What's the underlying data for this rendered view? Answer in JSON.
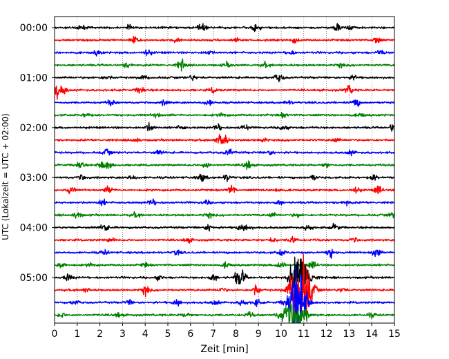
{
  "chart_data": {
    "type": "line",
    "title": "",
    "xlabel": "Zeit  [min]",
    "ylabel": "UTC (Lokalzeit = UTC + 02:00)",
    "xlim": [
      0,
      15
    ],
    "x_ticks": [
      "0",
      "1",
      "2",
      "3",
      "4",
      "5",
      "6",
      "7",
      "8",
      "9",
      "10",
      "11",
      "12",
      "13",
      "14",
      "15"
    ],
    "y_ticks": [
      "00:00",
      "01:00",
      "02:00",
      "03:00",
      "04:00",
      "05:00"
    ],
    "grid": "vertical dotted",
    "row_minutes": 15,
    "row_colors": [
      "#000000",
      "#ff0000",
      "#0000ff",
      "#008000"
    ],
    "series": [
      {
        "start": "00:00",
        "events": [
          [
            1.2,
            0.3
          ],
          [
            3.3,
            0.3
          ],
          [
            6.5,
            0.5
          ],
          [
            8.9,
            0.5
          ],
          [
            12.5,
            0.6
          ],
          [
            13.1,
            0.3
          ]
        ]
      },
      {
        "start": "00:15",
        "events": [
          [
            3.5,
            0.6
          ],
          [
            5.4,
            0.3
          ],
          [
            8.0,
            0.3
          ],
          [
            10.6,
            0.3
          ],
          [
            14.2,
            0.5
          ]
        ]
      },
      {
        "start": "00:30",
        "events": [
          [
            1.9,
            0.3
          ],
          [
            4.1,
            0.5
          ],
          [
            6.8,
            0.3
          ],
          [
            10.4,
            0.3
          ],
          [
            14.4,
            0.3
          ]
        ]
      },
      {
        "start": "00:45",
        "events": [
          [
            3.2,
            0.3
          ],
          [
            5.6,
            0.8
          ],
          [
            7.6,
            0.3
          ],
          [
            9.3,
            0.3
          ],
          [
            12.6,
            0.3
          ]
        ]
      },
      {
        "start": "01:00",
        "events": [
          [
            2.3,
            0.3
          ],
          [
            3.9,
            0.3
          ],
          [
            6.1,
            0.3
          ],
          [
            9.9,
            0.6
          ],
          [
            13.2,
            0.3
          ]
        ]
      },
      {
        "start": "01:15",
        "events": [
          [
            0.1,
            1.0
          ],
          [
            0.4,
            0.5
          ],
          [
            3.8,
            0.6
          ],
          [
            7.0,
            0.3
          ],
          [
            13.0,
            0.6
          ]
        ]
      },
      {
        "start": "01:30",
        "events": [
          [
            2.5,
            0.4
          ],
          [
            4.9,
            0.4
          ],
          [
            6.8,
            0.4
          ],
          [
            10.3,
            0.3
          ],
          [
            13.3,
            0.6
          ]
        ]
      },
      {
        "start": "01:45",
        "events": [
          [
            1.4,
            0.3
          ],
          [
            4.5,
            0.3
          ],
          [
            7.4,
            0.3
          ],
          [
            10.1,
            0.3
          ],
          [
            13.5,
            0.3
          ]
        ]
      },
      {
        "start": "02:00",
        "events": [
          [
            4.2,
            0.6
          ],
          [
            5.6,
            0.3
          ],
          [
            7.2,
            0.5
          ],
          [
            8.4,
            0.4
          ],
          [
            10.1,
            0.4
          ],
          [
            15.0,
            0.8
          ]
        ]
      },
      {
        "start": "02:15",
        "events": [
          [
            3.6,
            0.3
          ],
          [
            7.3,
            0.8
          ],
          [
            7.5,
            0.6
          ],
          [
            9.2,
            0.3
          ],
          [
            12.4,
            0.3
          ]
        ]
      },
      {
        "start": "02:30",
        "events": [
          [
            2.3,
            0.4
          ],
          [
            4.6,
            0.3
          ],
          [
            7.7,
            0.5
          ],
          [
            9.5,
            0.3
          ],
          [
            13.1,
            0.3
          ]
        ]
      },
      {
        "start": "02:45",
        "events": [
          [
            1.1,
            0.6
          ],
          [
            2.1,
            0.6
          ],
          [
            2.4,
            0.5
          ],
          [
            6.7,
            0.4
          ],
          [
            8.5,
            0.7
          ],
          [
            12.0,
            0.3
          ]
        ]
      },
      {
        "start": "03:00",
        "events": [
          [
            1.2,
            0.3
          ],
          [
            3.4,
            0.3
          ],
          [
            6.5,
            0.6
          ],
          [
            7.6,
            0.5
          ],
          [
            11.4,
            0.4
          ],
          [
            14.1,
            0.4
          ]
        ]
      },
      {
        "start": "03:15",
        "events": [
          [
            0.7,
            0.5
          ],
          [
            2.4,
            0.5
          ],
          [
            7.8,
            0.6
          ],
          [
            9.8,
            0.3
          ],
          [
            13.3,
            0.5
          ],
          [
            14.3,
            0.6
          ]
        ]
      },
      {
        "start": "03:30",
        "events": [
          [
            2.1,
            0.4
          ],
          [
            4.3,
            0.5
          ],
          [
            6.7,
            0.3
          ],
          [
            9.9,
            0.3
          ],
          [
            12.9,
            0.3
          ]
        ]
      },
      {
        "start": "03:45",
        "events": [
          [
            1.0,
            0.5
          ],
          [
            3.6,
            0.3
          ],
          [
            6.8,
            0.4
          ],
          [
            9.6,
            0.3
          ],
          [
            10.7,
            0.3
          ],
          [
            14.9,
            0.3
          ]
        ]
      },
      {
        "start": "04:00",
        "events": [
          [
            2.2,
            0.5
          ],
          [
            6.8,
            0.5
          ],
          [
            8.2,
            0.4
          ],
          [
            8.5,
            0.4
          ],
          [
            11.2,
            0.4
          ],
          [
            12.4,
            0.5
          ]
        ]
      },
      {
        "start": "04:15",
        "events": [
          [
            2.5,
            0.3
          ],
          [
            5.9,
            0.3
          ],
          [
            9.6,
            0.4
          ],
          [
            10.5,
            0.5
          ],
          [
            13.2,
            0.3
          ]
        ]
      },
      {
        "start": "04:30",
        "events": [
          [
            2.2,
            0.3
          ],
          [
            5.4,
            0.3
          ],
          [
            10.0,
            0.4
          ],
          [
            12.2,
            0.7
          ],
          [
            14.2,
            0.6
          ]
        ]
      },
      {
        "start": "04:45",
        "events": [
          [
            0.3,
            0.5
          ],
          [
            1.6,
            0.3
          ],
          [
            4.0,
            0.3
          ],
          [
            7.6,
            0.4
          ],
          [
            10.0,
            0.7
          ],
          [
            11.4,
            0.5
          ]
        ]
      },
      {
        "start": "05:00",
        "events": [
          [
            0.6,
            0.5
          ],
          [
            4.6,
            0.3
          ],
          [
            7.0,
            0.5
          ],
          [
            8.1,
            0.8
          ],
          [
            8.3,
            0.7
          ],
          [
            10.5,
            0.8
          ],
          [
            10.8,
            2.2
          ],
          [
            11.0,
            1.6
          ]
        ]
      },
      {
        "start": "05:15",
        "events": [
          [
            1.4,
            0.3
          ],
          [
            4.0,
            0.7
          ],
          [
            7.4,
            0.3
          ],
          [
            8.9,
            0.7
          ],
          [
            10.7,
            2.8
          ],
          [
            10.9,
            3.5
          ],
          [
            11.1,
            1.5
          ],
          [
            12.7,
            0.3
          ]
        ]
      },
      {
        "start": "05:30",
        "events": [
          [
            0.9,
            0.3
          ],
          [
            3.3,
            0.3
          ],
          [
            5.4,
            0.5
          ],
          [
            7.1,
            0.3
          ],
          [
            8.3,
            0.4
          ],
          [
            8.9,
            0.4
          ],
          [
            10.6,
            2.4
          ],
          [
            10.8,
            3.2
          ]
        ]
      },
      {
        "start": "05:45",
        "events": [
          [
            0.3,
            0.3
          ],
          [
            2.8,
            0.3
          ],
          [
            5.8,
            0.3
          ],
          [
            8.6,
            0.3
          ],
          [
            10.3,
            1.5
          ],
          [
            10.8,
            1.4
          ],
          [
            14.0,
            0.3
          ]
        ]
      }
    ]
  }
}
